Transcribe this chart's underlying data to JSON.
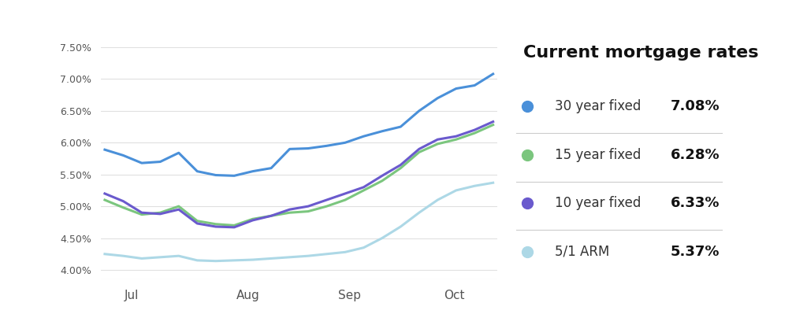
{
  "title": "Current mortgage rates",
  "background_color": "#ffffff",
  "chart_bg": "#ffffff",
  "grid_color": "#e0e0e0",
  "yticks": [
    4.0,
    4.5,
    5.0,
    5.5,
    6.0,
    6.5,
    7.0,
    7.5
  ],
  "ylim": [
    3.85,
    7.65
  ],
  "xtick_labels": [
    "Jul",
    "Aug",
    "Sep",
    "Oct"
  ],
  "xtick_positions": [
    0.07,
    0.37,
    0.63,
    0.9
  ],
  "series": {
    "30yr": {
      "color": "#4a90d9",
      "label": "30 year fixed",
      "rate": "7.08%",
      "values": [
        5.89,
        5.8,
        5.68,
        5.7,
        5.84,
        5.55,
        5.49,
        5.48,
        5.55,
        5.6,
        5.9,
        5.91,
        5.95,
        6.0,
        6.1,
        6.18,
        6.25,
        6.5,
        6.7,
        6.85,
        6.9,
        7.08
      ]
    },
    "15yr": {
      "color": "#7bc67e",
      "label": "15 year fixed",
      "rate": "6.28%",
      "values": [
        5.1,
        4.98,
        4.87,
        4.9,
        5.0,
        4.77,
        4.72,
        4.7,
        4.8,
        4.85,
        4.9,
        4.92,
        5.0,
        5.1,
        5.25,
        5.4,
        5.6,
        5.85,
        5.98,
        6.05,
        6.15,
        6.28
      ]
    },
    "10yr": {
      "color": "#6a5acd",
      "label": "10 year fixed",
      "rate": "6.33%",
      "values": [
        5.2,
        5.08,
        4.9,
        4.88,
        4.95,
        4.73,
        4.68,
        4.67,
        4.78,
        4.85,
        4.95,
        5.0,
        5.1,
        5.2,
        5.3,
        5.48,
        5.65,
        5.9,
        6.05,
        6.1,
        6.2,
        6.33
      ]
    },
    "arm": {
      "color": "#add8e6",
      "label": "5/1 ARM",
      "rate": "5.37%",
      "values": [
        4.25,
        4.22,
        4.18,
        4.2,
        4.22,
        4.15,
        4.14,
        4.15,
        4.16,
        4.18,
        4.2,
        4.22,
        4.25,
        4.28,
        4.35,
        4.5,
        4.68,
        4.9,
        5.1,
        5.25,
        5.32,
        5.37
      ]
    }
  },
  "entries": [
    {
      "key": "30yr",
      "dot_color": "#4a90d9",
      "label": "30 year fixed",
      "rate": "7.08%"
    },
    {
      "key": "15yr",
      "dot_color": "#7bc67e",
      "label": "15 year fixed",
      "rate": "6.28%"
    },
    {
      "key": "10yr",
      "dot_color": "#6a5acd",
      "label": "10 year fixed",
      "rate": "6.33%"
    },
    {
      "key": "arm",
      "dot_color": "#add8e6",
      "label": "5/1 ARM",
      "rate": "5.37%"
    }
  ],
  "divider_color": "#cccccc",
  "rate_fontsize": 13,
  "label_fontsize": 12,
  "title_fontsize": 16
}
